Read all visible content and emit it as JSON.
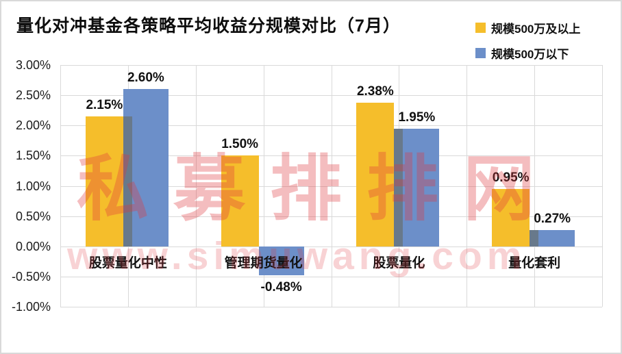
{
  "title": "量化对冲基金各策略平均收益分规模对比（7月）",
  "legend": [
    {
      "label": "规模500万及以上",
      "color": "#F5BE2B"
    },
    {
      "label": "规模500万以下",
      "color": "#6C8FC9"
    }
  ],
  "watermark": {
    "text": "私募排排网",
    "url": "www.simuwang.com",
    "color": "#E0393F"
  },
  "chart_data": {
    "type": "bar",
    "title": "量化对冲基金各策略平均收益分规模对比（7月）",
    "categories": [
      "股票量化中性",
      "管理期货量化",
      "股票量化",
      "量化套利"
    ],
    "series": [
      {
        "name": "规模500万及以上",
        "color": "#F5BE2B",
        "values": [
          2.15,
          1.5,
          2.38,
          0.95
        ],
        "labels": [
          "2.15%",
          "1.50%",
          "2.38%",
          "0.95%"
        ]
      },
      {
        "name": "规模500万以下",
        "color": "#6C8FC9",
        "values": [
          2.6,
          -0.48,
          1.95,
          0.27
        ],
        "labels": [
          "2.60%",
          "-0.48%",
          "1.95%",
          "0.27%"
        ]
      }
    ],
    "ylim": [
      -1,
      3
    ],
    "ytick_step": 0.5,
    "yticks": [
      "3.00%",
      "2.50%",
      "2.00%",
      "1.50%",
      "1.00%",
      "0.50%",
      "0.00%",
      "-0.50%",
      "-1.00%"
    ],
    "grid": true,
    "legend_position": "top-right",
    "gridline_color": "#D9D9D9",
    "overlap_color": "#68798B",
    "label_color": "#111111"
  }
}
